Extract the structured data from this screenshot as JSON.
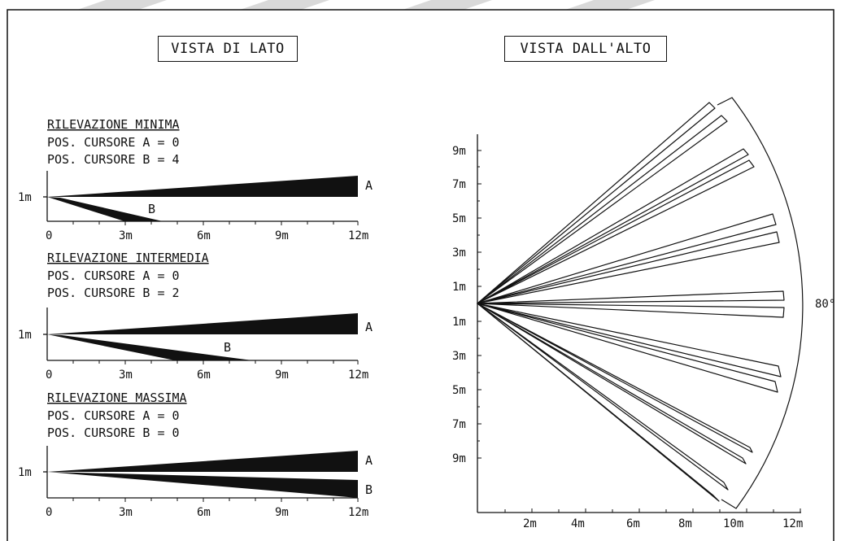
{
  "side_view": {
    "title": "VISTA DI LATO",
    "axis_label_y": "1m",
    "x_ticks": [
      "0",
      "3m",
      "6m",
      "9m",
      "12m"
    ],
    "panels": [
      {
        "heading": "RILEVAZIONE MINIMA",
        "line_a": "POS. CURSORE A = 0",
        "line_b": "POS. CURSORE B = 4",
        "label_a": "A",
        "label_b": "B",
        "b_range_m": 4.5
      },
      {
        "heading": "RILEVAZIONE INTERMEDIA",
        "line_a": "POS. CURSORE A = 0",
        "line_b": "POS. CURSORE B = 2",
        "label_a": "A",
        "label_b": "B",
        "b_range_m": 8
      },
      {
        "heading": "RILEVAZIONE MASSIMA",
        "line_a": "POS. CURSORE A = 0",
        "line_b": "POS. CURSORE B = 0",
        "label_a": "A",
        "label_b": "B",
        "b_range_m": 12
      }
    ]
  },
  "top_view": {
    "title": "VISTA DALL'ALTO",
    "angle_label": "80°",
    "y_ticks": [
      "9m",
      "7m",
      "5m",
      "3m",
      "1m",
      "1m",
      "3m",
      "5m",
      "7m",
      "9m"
    ],
    "x_ticks": [
      "2m",
      "4m",
      "6m",
      "8m",
      "10m",
      "12m"
    ]
  },
  "colors": {
    "ink": "#111111",
    "banner": "#d9d9d9"
  }
}
